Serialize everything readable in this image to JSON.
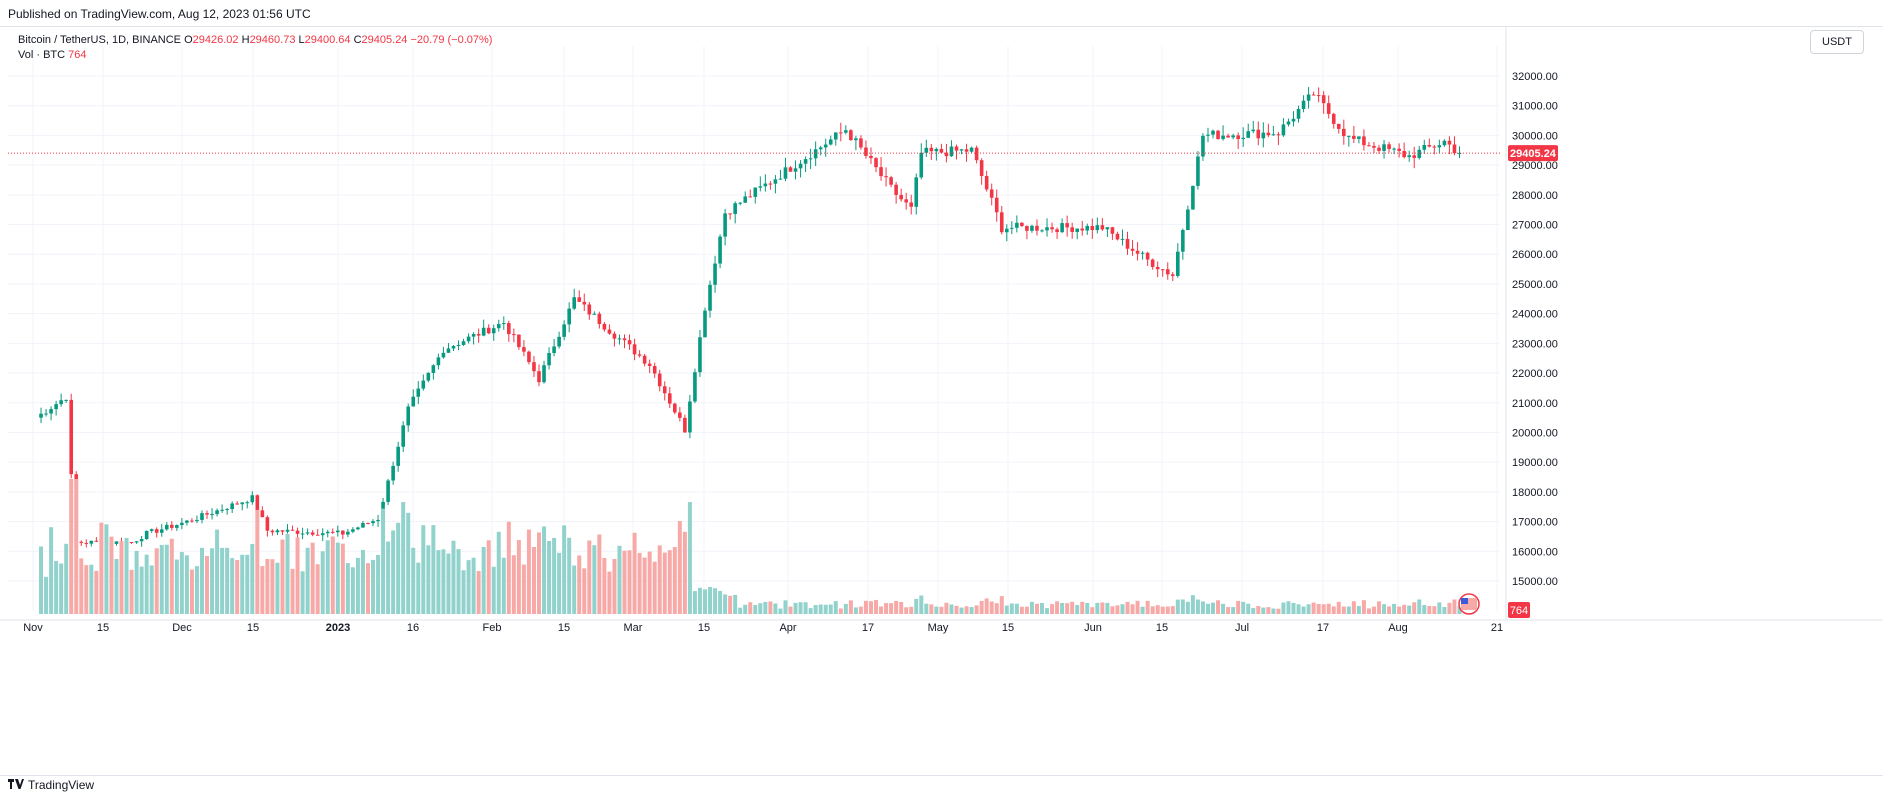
{
  "header": {
    "published_text": "Published on TradingView.com, Aug 12, 2023 01:56 UTC"
  },
  "legend": {
    "symbol": "Bitcoin / TetherUS, 1D, BINANCE",
    "o_label": "O",
    "o_value": "29426.02",
    "h_label": "H",
    "h_value": "29460.73",
    "l_label": "L",
    "l_value": "29400.64",
    "c_label": "C",
    "c_value": "29405.24",
    "change": "−20.79 (−0.07%)",
    "vol_label": "Vol · BTC",
    "vol_value": "764"
  },
  "currency_button": "USDT",
  "last_price_label": "29405.24",
  "last_volume_label": "764",
  "footer": {
    "brand": "TradingView"
  },
  "colors": {
    "up": "#089981",
    "down": "#f23645",
    "vol_up": "#92d2cc",
    "vol_down": "#f7a9a7"
  },
  "chart_data": {
    "type": "candlestick",
    "symbol": "BTCUSDT",
    "interval": "1D",
    "y_axis": {
      "ticks": [
        "15000.00",
        "16000.00",
        "17000.00",
        "18000.00",
        "19000.00",
        "20000.00",
        "21000.00",
        "22000.00",
        "23000.00",
        "24000.00",
        "25000.00",
        "26000.00",
        "27000.00",
        "28000.00",
        "29000.00",
        "30000.00",
        "31000.00",
        "32000.00"
      ],
      "range": [
        14000,
        33000
      ]
    },
    "x_axis": {
      "ticks": [
        "Nov",
        "15",
        "Dec",
        "15",
        "2023",
        "16",
        "Feb",
        "15",
        "Mar",
        "15",
        "Apr",
        "17",
        "May",
        "15",
        "Jun",
        "15",
        "Jul",
        "17",
        "Aug",
        "21"
      ]
    },
    "last_close": 29405.24,
    "anchors": [
      {
        "date": "Nov 1",
        "price": 20500
      },
      {
        "date": "Nov 7",
        "price": 21200
      },
      {
        "date": "Nov 8",
        "price": 18500
      },
      {
        "date": "Nov 9",
        "price": 16300
      },
      {
        "date": "Nov 20",
        "price": 16300
      },
      {
        "date": "Nov 23",
        "price": 16600
      },
      {
        "date": "Dec 1",
        "price": 17000
      },
      {
        "date": "Dec 14",
        "price": 17800
      },
      {
        "date": "Dec 17",
        "price": 16700
      },
      {
        "date": "Jan 1",
        "price": 16600
      },
      {
        "date": "Jan 8",
        "price": 17100
      },
      {
        "date": "Jan 14",
        "price": 20800
      },
      {
        "date": "Jan 21",
        "price": 22800
      },
      {
        "date": "Feb 2",
        "price": 23700
      },
      {
        "date": "Feb 9",
        "price": 21800
      },
      {
        "date": "Feb 16",
        "price": 24500
      },
      {
        "date": "Feb 24",
        "price": 23300
      },
      {
        "date": "Mar 3",
        "price": 22300
      },
      {
        "date": "Mar 10",
        "price": 20100
      },
      {
        "date": "Mar 14",
        "price": 24200
      },
      {
        "date": "Mar 18",
        "price": 27400
      },
      {
        "date": "Apr 11",
        "price": 30200
      },
      {
        "date": "Apr 20",
        "price": 28200
      },
      {
        "date": "Apr 24",
        "price": 27500
      },
      {
        "date": "Apr 26",
        "price": 29400
      },
      {
        "date": "May 6",
        "price": 29500
      },
      {
        "date": "May 12",
        "price": 26900
      },
      {
        "date": "Jun 1",
        "price": 26900
      },
      {
        "date": "Jun 10",
        "price": 25800
      },
      {
        "date": "Jun 15",
        "price": 25300
      },
      {
        "date": "Jun 21",
        "price": 30000
      },
      {
        "date": "Jul 6",
        "price": 30100
      },
      {
        "date": "Jul 13",
        "price": 31400
      },
      {
        "date": "Jul 20",
        "price": 29900
      },
      {
        "date": "Aug 1",
        "price": 29300
      },
      {
        "date": "Aug 8",
        "price": 29800
      },
      {
        "date": "Aug 11",
        "price": 29405
      }
    ],
    "volume_note": "Daily volume bars in BTC, peaks around Nov 9 and Mar 10-14"
  }
}
